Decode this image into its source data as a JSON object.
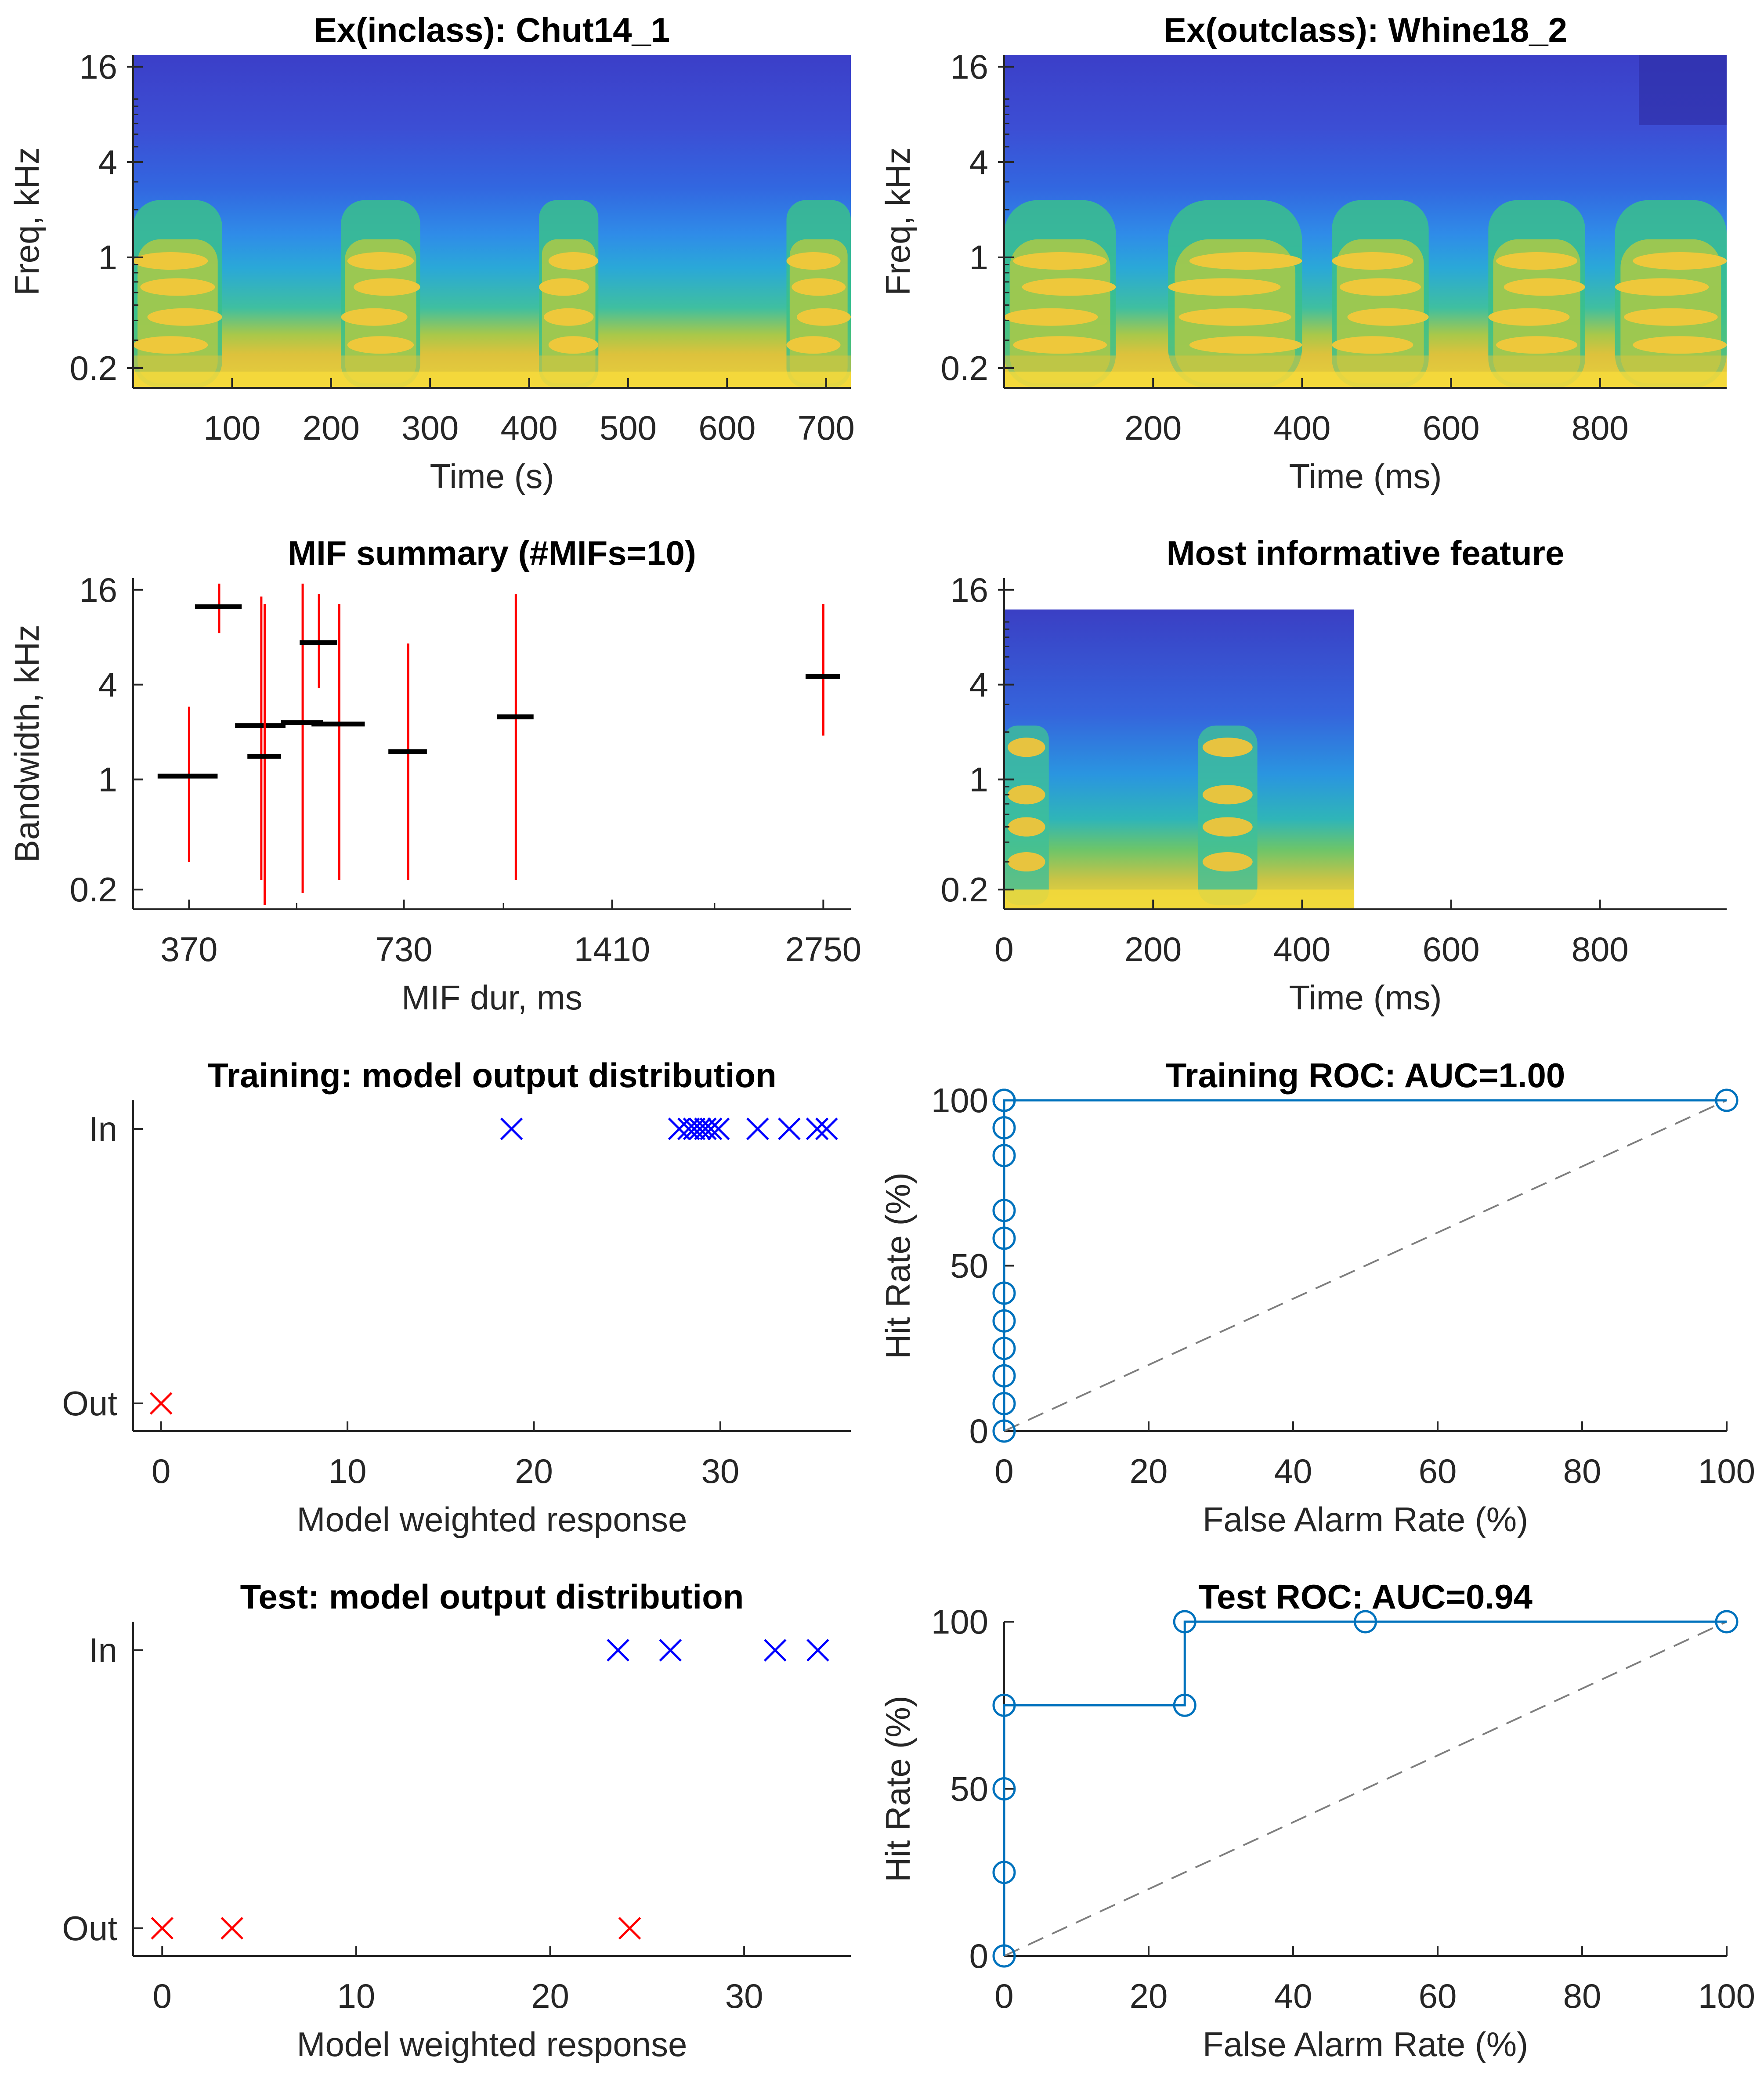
{
  "chart_data": [
    {
      "type": "heatmap",
      "title": "Ex(inclass): Chut14_1",
      "xlabel": "Time (s)",
      "ylabel": "Freq, kHz",
      "xlim": [
        0,
        725
      ],
      "xticks": [
        100,
        200,
        300,
        400,
        500,
        600,
        700
      ],
      "yscale": "log",
      "yticks": [
        0.2,
        1,
        4,
        16
      ],
      "colormap": "parula",
      "energy_bursts_s": [
        [
          0,
          90
        ],
        [
          210,
          290
        ],
        [
          410,
          470
        ],
        [
          660,
          725
        ]
      ]
    },
    {
      "type": "heatmap",
      "title": "Ex(outclass): Whine18_2",
      "xlabel": "Time (ms)",
      "ylabel": "Freq, kHz",
      "xlim": [
        0,
        970
      ],
      "xticks": [
        200,
        400,
        600,
        800
      ],
      "yscale": "log",
      "yticks": [
        0.2,
        1,
        4,
        16
      ],
      "colormap": "parula",
      "energy_bursts_ms": [
        [
          0,
          150
        ],
        [
          220,
          400
        ],
        [
          440,
          570
        ],
        [
          650,
          780
        ],
        [
          820,
          970
        ]
      ]
    },
    {
      "type": "scatter",
      "title": "MIF summary (#MIFs=10)",
      "xlabel": "MIF dur, ms",
      "ylabel": "Bandwidth, kHz",
      "xscale": "log",
      "yscale": "log",
      "xticks": [
        370,
        730,
        1410,
        2750
      ],
      "yticks": [
        0.2,
        1,
        4,
        16
      ],
      "xlim": [
        310,
        3000
      ],
      "ylim": [
        0.15,
        19
      ],
      "series": [
        {
          "values": [
            {
              "dur": 370,
              "bw": 1.05,
              "dur_range": [
                335,
                405
              ],
              "f_range": [
                0.3,
                2.9
              ]
            },
            {
              "dur": 407,
              "bw": 12.5,
              "dur_range": [
                377,
                437
              ],
              "f_range": [
                8.5,
                17.5
              ]
            },
            {
              "dur": 465,
              "bw": 2.2,
              "dur_range": [
                428,
                502
              ],
              "f_range": [
                0.23,
                14.5
              ]
            },
            {
              "dur": 470,
              "bw": 1.4,
              "dur_range": [
                445,
                495
              ],
              "f_range": [
                0.16,
                13.0
              ]
            },
            {
              "dur": 530,
              "bw": 2.3,
              "dur_range": [
                495,
                565
              ],
              "f_range": [
                0.19,
                17.5
              ]
            },
            {
              "dur": 558,
              "bw": 7.4,
              "dur_range": [
                525,
                591
              ],
              "f_range": [
                3.8,
                15.0
              ]
            },
            {
              "dur": 595,
              "bw": 2.25,
              "dur_range": [
                545,
                645
              ],
              "f_range": [
                0.23,
                13.0
              ]
            },
            {
              "dur": 740,
              "bw": 1.5,
              "dur_range": [
                695,
                785
              ],
              "f_range": [
                0.23,
                7.3
              ]
            },
            {
              "dur": 1040,
              "bw": 2.5,
              "dur_range": [
                980,
                1100
              ],
              "f_range": [
                0.23,
                15.0
              ]
            },
            {
              "dur": 2750,
              "bw": 4.5,
              "dur_range": [
                2600,
                2900
              ],
              "f_range": [
                1.9,
                13.0
              ]
            }
          ]
        }
      ]
    },
    {
      "type": "heatmap",
      "title": "Most informative feature",
      "xlabel": "Time (ms)",
      "xlim": [
        0,
        970
      ],
      "xticks": [
        0,
        200,
        400,
        600,
        800
      ],
      "yscale": "log",
      "yticks": [
        0.2,
        1,
        4,
        16
      ],
      "feature_extent": {
        "time_ms": [
          0,
          470
        ],
        "freq_khz": [
          0.15,
          12
        ]
      },
      "colormap": "parula"
    },
    {
      "type": "scatter",
      "title": "Training: model output distribution",
      "xlabel": "Model weighted response",
      "xlim": [
        -1.5,
        37
      ],
      "xticks": [
        0,
        10,
        20,
        30
      ],
      "categories": [
        "Out",
        "In"
      ],
      "series": [
        {
          "class": "In",
          "color": "#0000ff",
          "x": [
            18.8,
            27.8,
            28.3,
            28.6,
            28.9,
            29.2,
            29.5,
            29.9,
            32.0,
            33.7,
            35.2,
            35.7
          ]
        },
        {
          "class": "Out",
          "color": "#ff0000",
          "x": [
            0
          ]
        }
      ]
    },
    {
      "type": "line",
      "title": "Training ROC: AUC=1.00",
      "xlabel": "False Alarm Rate (%)",
      "ylabel": "Hit Rate (%)",
      "xlim": [
        0,
        100
      ],
      "ylim": [
        0,
        100
      ],
      "xticks": [
        0,
        20,
        40,
        60,
        80,
        100
      ],
      "yticks": [
        0,
        50,
        100
      ],
      "color": "#0072bd",
      "x": [
        0,
        0,
        0,
        0,
        0,
        0,
        0,
        0,
        0,
        0,
        0,
        0,
        0,
        100
      ],
      "y": [
        0,
        8.3,
        16.7,
        25,
        33.3,
        41.7,
        58.3,
        66.7,
        83.3,
        91.7,
        100,
        100,
        100,
        100
      ],
      "chance_line": true
    },
    {
      "type": "scatter",
      "title": "Test: model output distribution",
      "xlabel": "Model weighted response",
      "xlim": [
        -1.5,
        35.5
      ],
      "xticks": [
        0,
        10,
        20,
        30
      ],
      "categories": [
        "Out",
        "In"
      ],
      "series": [
        {
          "class": "In",
          "color": "#0000ff",
          "x": [
            23.5,
            26.2,
            31.6,
            33.8
          ]
        },
        {
          "class": "Out",
          "color": "#ff0000",
          "x": [
            0,
            3.6,
            24.1
          ]
        }
      ]
    },
    {
      "type": "line",
      "title": "Test ROC: AUC=0.94",
      "xlabel": "False Alarm Rate (%)",
      "ylabel": "Hit Rate (%)",
      "xlim": [
        0,
        100
      ],
      "ylim": [
        0,
        100
      ],
      "xticks": [
        0,
        20,
        40,
        60,
        80,
        100
      ],
      "yticks": [
        0,
        50,
        100
      ],
      "color": "#0072bd",
      "x": [
        0,
        0,
        0,
        0,
        25,
        25,
        50,
        100
      ],
      "y": [
        0,
        25,
        50,
        75,
        75,
        100,
        100,
        100
      ],
      "chance_line": true
    }
  ]
}
